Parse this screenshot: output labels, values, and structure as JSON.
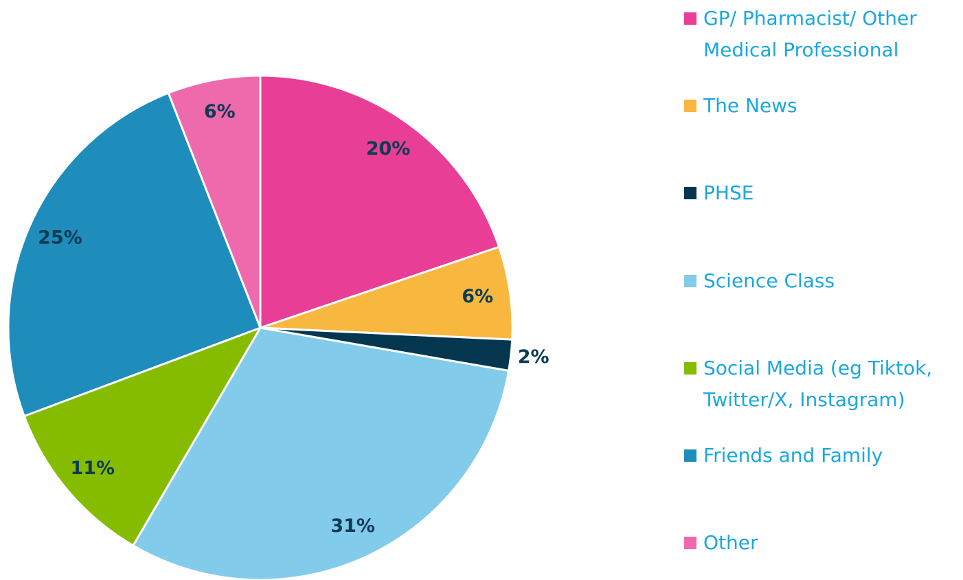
{
  "chart_data": {
    "type": "pie",
    "categories": [
      "GP/ Pharmacist/ Other Medical Professional",
      "The News",
      "PHSE",
      "Science Class",
      "Social Media (eg Tiktok, Twitter/X, Instagram)",
      "Friends and Family",
      "Other"
    ],
    "values": [
      20,
      6,
      2,
      31,
      11,
      25,
      6
    ],
    "value_labels": [
      "20%",
      "6%",
      "2%",
      "31%",
      "11%",
      "25%",
      "6%"
    ],
    "colors": [
      "#e83e96",
      "#f8b83f",
      "#04374f",
      "#82cbeb",
      "#86bc00",
      "#1f8dbb",
      "#ef69ad"
    ],
    "legend": "right"
  }
}
